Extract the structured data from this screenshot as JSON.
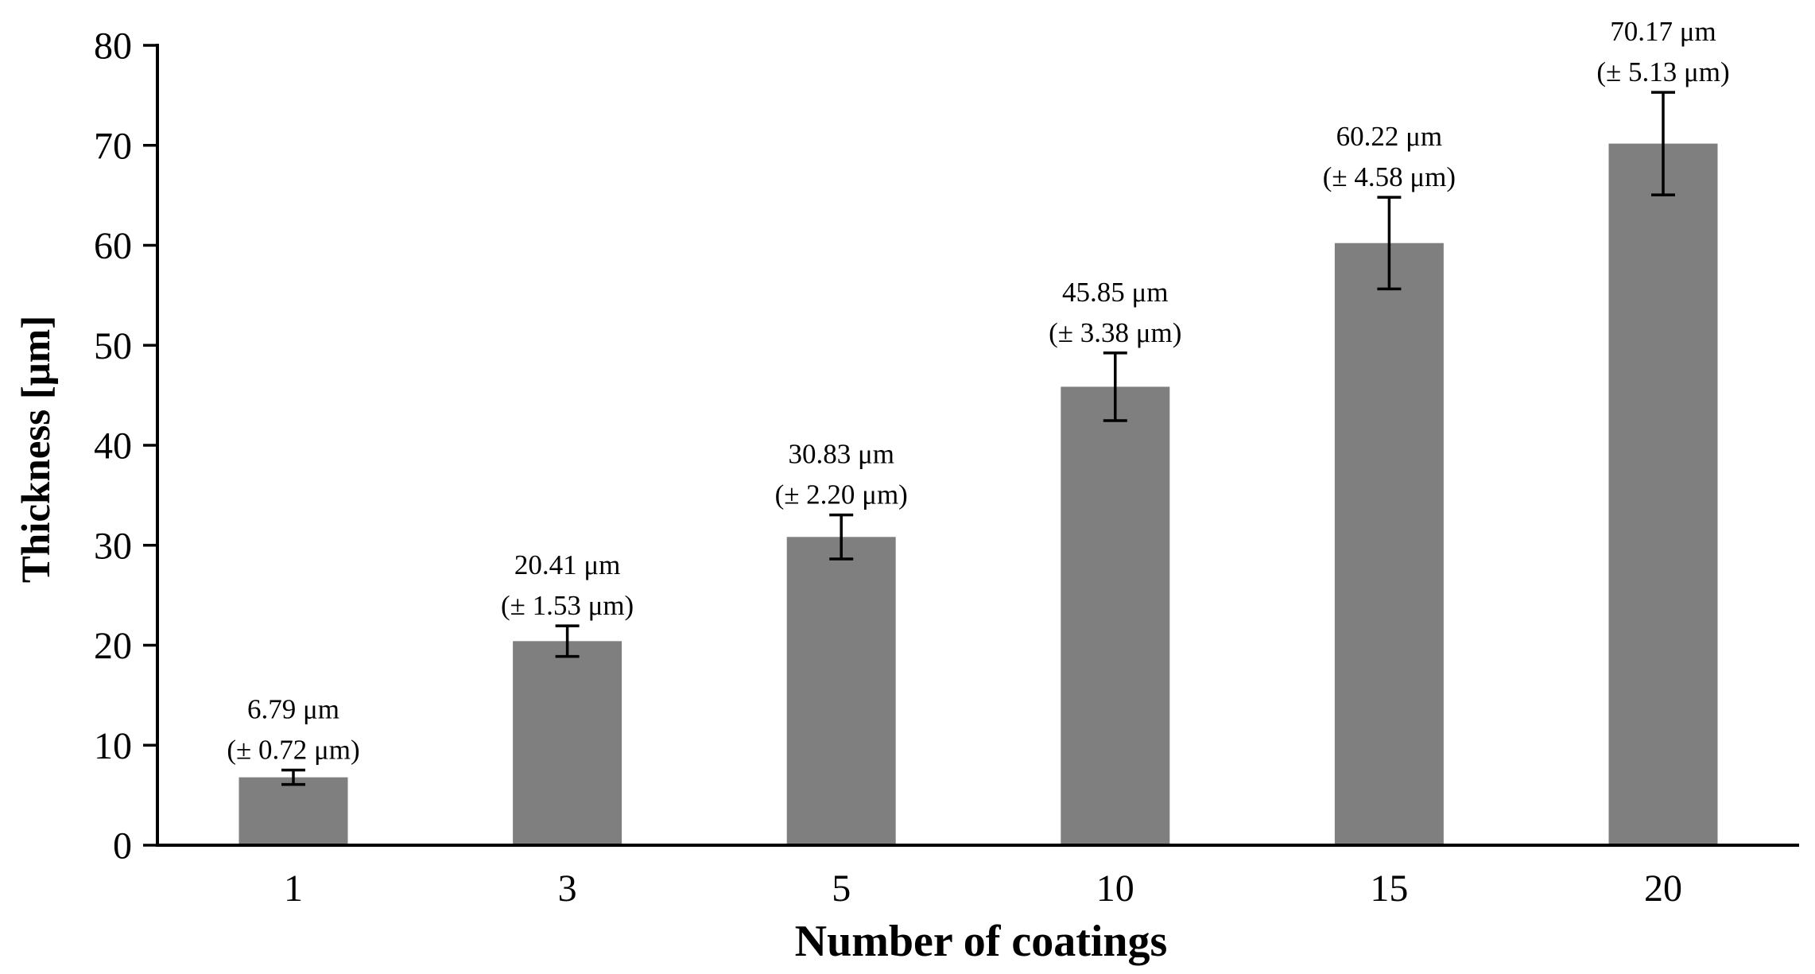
{
  "chart_data": {
    "type": "bar",
    "title": "",
    "xlabel": "Number of coatings",
    "ylabel": "Thickness [μm]",
    "categories": [
      "1",
      "3",
      "5",
      "10",
      "15",
      "20"
    ],
    "values": [
      6.79,
      20.41,
      30.83,
      45.85,
      60.22,
      70.17
    ],
    "errors": [
      0.72,
      1.53,
      2.2,
      3.38,
      4.58,
      5.13
    ],
    "point_labels": [
      {
        "line1": "6.79 μm",
        "line2": "(± 0.72 μm)"
      },
      {
        "line1": "20.41 μm",
        "line2": "(± 1.53 μm)"
      },
      {
        "line1": "30.83 μm",
        "line2": "(± 2.20 μm)"
      },
      {
        "line1": "45.85 μm",
        "line2": "(± 3.38 μm)"
      },
      {
        "line1": "60.22 μm",
        "line2": "(± 4.58 μm)"
      },
      {
        "line1": "70.17 μm",
        "line2": "(± 5.13 μm)"
      }
    ],
    "ylim": [
      0,
      80
    ],
    "yticks": [
      "0",
      "10",
      "20",
      "30",
      "40",
      "50",
      "60",
      "70",
      "80"
    ],
    "ytick_step": 10,
    "grid": false,
    "legend": null,
    "bar_color": "#7f7f7f",
    "axis_color": "#000000",
    "error_bar_color": "#000000",
    "background_color": "#ffffff"
  }
}
